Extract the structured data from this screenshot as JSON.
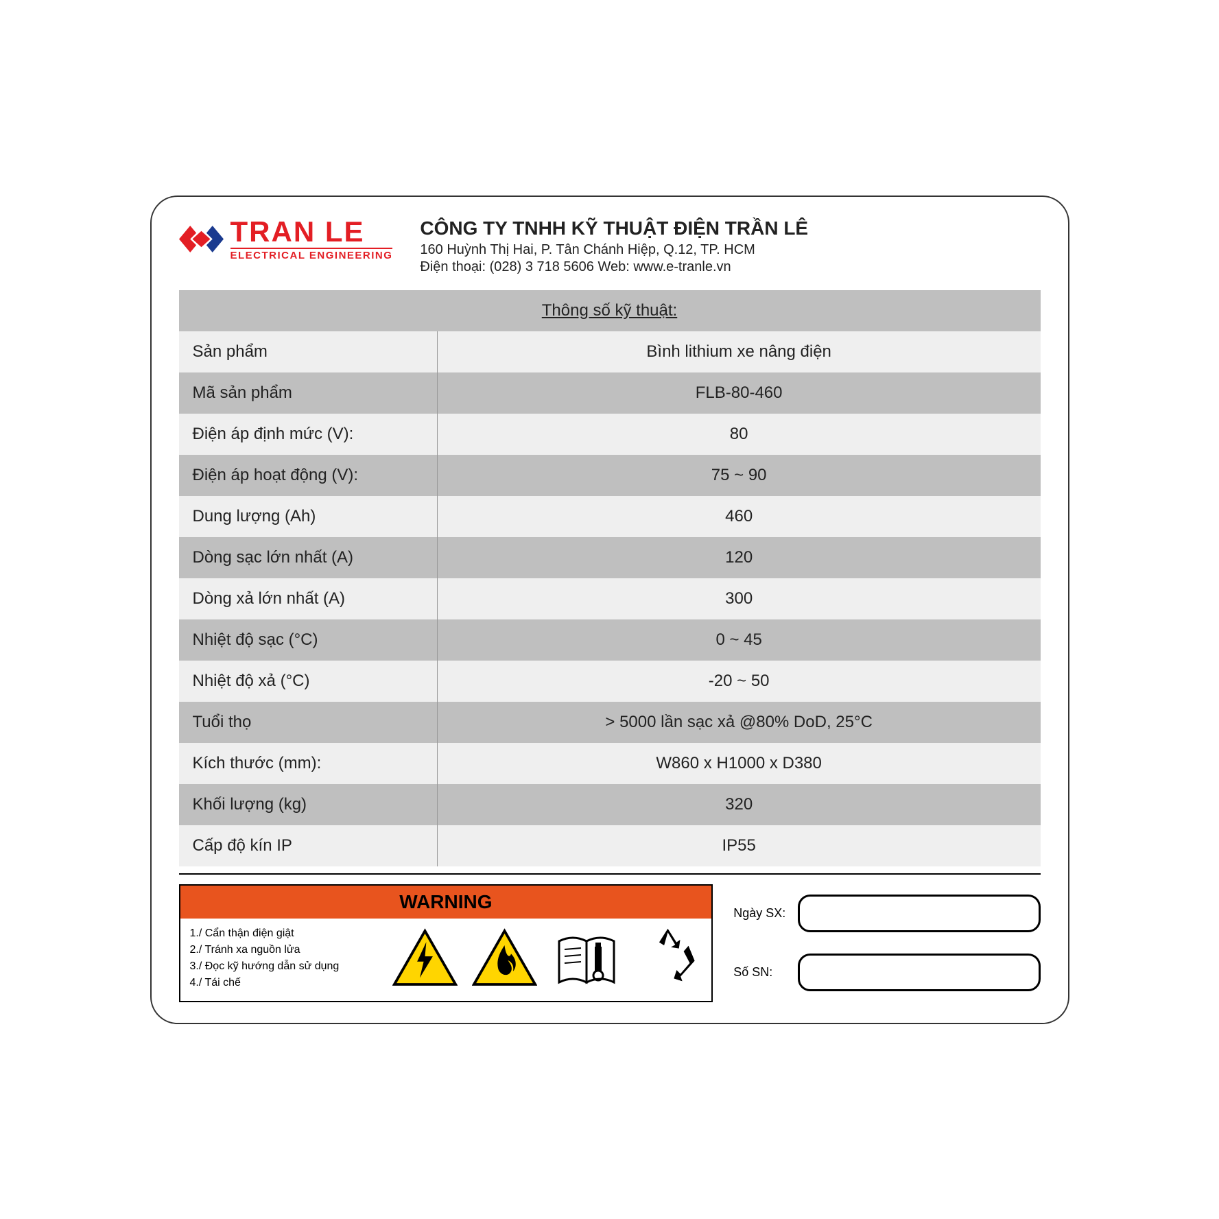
{
  "logo": {
    "main": "TRAN LE",
    "sub": "ELECTRICAL ENGINEERING",
    "brand_color": "#e31e24",
    "icon_blue": "#1a3a8f",
    "icon_red": "#e31e24"
  },
  "company": {
    "title": "CÔNG TY TNHH KỸ THUẬT ĐIỆN TRẦN LÊ",
    "address": "160 Huỳnh Thị Hai, P. Tân Chánh Hiệp, Q.12, TP. HCM",
    "contact": "Điện thoại: (028) 3 718 5606  Web: www.e-tranle.vn"
  },
  "spec_title": "Thông số kỹ thuật:",
  "rows": [
    {
      "label": "Sản phẩm",
      "value": "Bình lithium xe nâng điện",
      "shade": "light"
    },
    {
      "label": "Mã sản phẩm",
      "value": "FLB-80-460",
      "shade": "dark"
    },
    {
      "label": "Điện áp định mức (V):",
      "value": "80",
      "shade": "light"
    },
    {
      "label": "Điện áp hoạt động (V):",
      "value": "75 ~ 90",
      "shade": "dark"
    },
    {
      "label": "Dung lượng (Ah)",
      "value": "460",
      "shade": "light"
    },
    {
      "label": "Dòng sạc lớn nhất (A)",
      "value": "120",
      "shade": "dark"
    },
    {
      "label": "Dòng xả lớn nhất (A)",
      "value": "300",
      "shade": "light"
    },
    {
      "label": "Nhiệt độ sạc (°C)",
      "value": "0 ~ 45",
      "shade": "dark"
    },
    {
      "label": "Nhiệt độ xả (°C)",
      "value": "-20 ~ 50",
      "shade": "light"
    },
    {
      "label": "Tuổi thọ",
      "value": "> 5000 lần sạc xả @80% DoD, 25°C",
      "shade": "dark"
    },
    {
      "label": "Kích thước (mm):",
      "value": "W860 x H1000 x D380",
      "shade": "light"
    },
    {
      "label": "Khối lượng (kg)",
      "value": "320",
      "shade": "dark"
    },
    {
      "label": "Cấp độ kín IP",
      "value": "IP55",
      "shade": "light"
    }
  ],
  "warning": {
    "title": "WARNING",
    "header_bg": "#e8541e",
    "items": [
      "1./ Cẩn thận điện giật",
      "2./ Tránh xa nguồn lửa",
      "3./ Đọc kỹ hướng dẫn sử dụng",
      "4./ Tái chế"
    ]
  },
  "fields": {
    "date_label": "Ngày SX:",
    "sn_label": "Số SN:"
  },
  "colors": {
    "row_light": "#efefef",
    "row_dark": "#bfbfbf",
    "text": "#222222",
    "border": "#000000"
  }
}
